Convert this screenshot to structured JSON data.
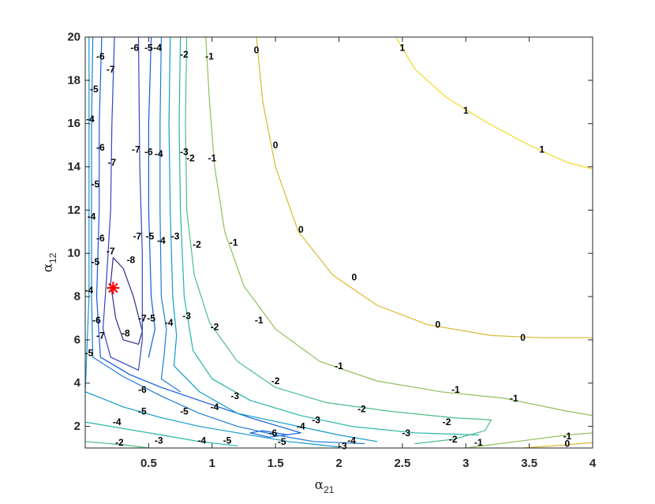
{
  "chart_data": {
    "type": "contour",
    "title": "",
    "xlabel": {
      "symbol": "α",
      "subscript": "21"
    },
    "ylabel": {
      "symbol": "α",
      "subscript": "12"
    },
    "xlim": [
      0.0,
      4.0
    ],
    "ylim": [
      1,
      20
    ],
    "x_ticks": [
      0.5,
      1,
      1.5,
      2,
      2.5,
      3,
      3.5,
      4
    ],
    "y_ticks": [
      2,
      4,
      6,
      8,
      10,
      12,
      14,
      16,
      18,
      20
    ],
    "x_tick_labels": [
      "0.5",
      "1",
      "1.5",
      "2",
      "2.5",
      "3",
      "3.5",
      "4"
    ],
    "y_tick_labels": [
      "2",
      "4",
      "6",
      "8",
      "10",
      "12",
      "14",
      "16",
      "18",
      "20"
    ],
    "grid": false,
    "colormap": "parula",
    "marker": {
      "symbol": "*",
      "color": "#ff0000",
      "x": 0.22,
      "y": 8.4
    },
    "levels": [
      {
        "value": -8,
        "color": "#352a87",
        "points": [
          [
            0.22,
            9.8
          ],
          [
            0.3,
            9.3
          ],
          [
            0.38,
            8.0
          ],
          [
            0.45,
            6.4
          ],
          [
            0.42,
            5.8
          ],
          [
            0.3,
            6.0
          ],
          [
            0.24,
            7.0
          ],
          [
            0.2,
            8.6
          ],
          [
            0.22,
            9.8
          ]
        ]
      },
      {
        "value": -7,
        "color": "#3344c4",
        "points": [
          [
            0.23,
            20
          ],
          [
            0.21,
            16
          ],
          [
            0.2,
            12
          ],
          [
            0.17,
            9
          ],
          [
            0.14,
            6.5
          ],
          [
            0.2,
            5.2
          ],
          [
            0.42,
            4.6
          ],
          [
            0.45,
            6
          ],
          [
            0.45,
            10
          ],
          [
            0.43,
            14
          ],
          [
            0.42,
            20
          ]
        ]
      },
      {
        "value": -6,
        "color": "#0f5cdd",
        "points": [
          [
            0.13,
            20
          ],
          [
            0.11,
            16
          ],
          [
            0.11,
            12
          ],
          [
            0.09,
            8
          ],
          [
            0.12,
            5.2
          ],
          [
            0.35,
            4.4
          ],
          [
            0.6,
            3.8
          ],
          [
            0.9,
            3.2
          ],
          [
            1.3,
            2.4
          ],
          [
            1.7,
            1.7
          ],
          [
            1.45,
            1.5
          ],
          [
            1.3,
            1.7
          ],
          [
            1.4,
            1.8
          ],
          [
            1.6,
            1.6
          ]
        ]
      },
      {
        "value": -6,
        "color": "#0f5cdd",
        "points": [
          [
            0.52,
            20
          ],
          [
            0.5,
            16
          ],
          [
            0.5,
            12
          ],
          [
            0.52,
            8
          ],
          [
            0.55,
            6.5
          ],
          [
            0.5,
            5.2
          ]
        ]
      },
      {
        "value": -5,
        "color": "#1e7ad6",
        "points": [
          [
            0.06,
            20
          ],
          [
            0.05,
            16
          ],
          [
            0.05,
            12
          ],
          [
            0.05,
            8
          ],
          [
            0.06,
            5.2
          ],
          [
            0.3,
            4.3
          ],
          [
            0.6,
            3.4
          ],
          [
            0.9,
            2.6
          ],
          [
            1.2,
            2.0
          ],
          [
            1.5,
            1.6
          ],
          [
            1.8,
            1.3
          ],
          [
            2.2,
            1.2
          ]
        ]
      },
      {
        "value": -5,
        "color": "#1e7ad6",
        "points": [
          [
            0.6,
            20
          ],
          [
            0.59,
            16
          ],
          [
            0.59,
            12
          ],
          [
            0.6,
            8
          ],
          [
            0.64,
            6.5
          ],
          [
            0.62,
            5.2
          ],
          [
            0.6,
            4.2
          ],
          [
            0.75,
            3.6
          ]
        ]
      },
      {
        "value": -4,
        "color": "#109bcb",
        "points": [
          [
            0.03,
            20
          ],
          [
            0.03,
            16
          ],
          [
            0.03,
            12
          ],
          [
            0.03,
            8
          ],
          [
            0.0,
            3.6
          ],
          [
            0.3,
            2.9
          ],
          [
            0.6,
            2.4
          ],
          [
            0.9,
            2.0
          ],
          [
            1.2,
            1.7
          ],
          [
            1.6,
            1.3
          ],
          [
            2.0,
            1.05
          ]
        ]
      },
      {
        "value": -4,
        "color": "#109bcb",
        "points": [
          [
            0.67,
            20
          ],
          [
            0.66,
            16
          ],
          [
            0.67,
            12
          ],
          [
            0.69,
            8
          ],
          [
            0.72,
            6.2
          ],
          [
            0.7,
            4.8
          ],
          [
            0.9,
            3.6
          ],
          [
            1.2,
            2.6
          ],
          [
            1.6,
            2.1
          ],
          [
            2.0,
            1.6
          ],
          [
            2.3,
            1.3
          ]
        ]
      },
      {
        "value": -3,
        "color": "#22b4aa",
        "points": [
          [
            0.0,
            2.2
          ],
          [
            0.3,
            1.9
          ],
          [
            0.6,
            1.6
          ],
          [
            0.9,
            1.3
          ],
          [
            1.2,
            1.1
          ]
        ]
      },
      {
        "value": -3,
        "color": "#22b4aa",
        "points": [
          [
            0.75,
            20
          ],
          [
            0.74,
            16
          ],
          [
            0.75,
            12
          ],
          [
            0.78,
            8
          ],
          [
            0.85,
            5.5
          ],
          [
            1.0,
            4.2
          ],
          [
            1.3,
            3.2
          ],
          [
            1.7,
            2.5
          ],
          [
            2.1,
            2.0
          ],
          [
            2.6,
            1.7
          ],
          [
            3.1,
            1.6
          ]
        ]
      },
      {
        "value": -2,
        "color": "#4bbd89",
        "points": [
          [
            0.0,
            1.3
          ],
          [
            0.3,
            1.15
          ],
          [
            0.5,
            1.0
          ]
        ]
      },
      {
        "value": -2,
        "color": "#4bbd89",
        "points": [
          [
            0.8,
            20
          ],
          [
            0.79,
            16
          ],
          [
            0.8,
            12
          ],
          [
            0.86,
            9
          ],
          [
            0.98,
            6.8
          ],
          [
            1.2,
            5.0
          ],
          [
            1.5,
            3.8
          ],
          [
            1.9,
            3.1
          ],
          [
            2.4,
            2.7
          ],
          [
            2.9,
            2.4
          ],
          [
            3.2,
            2.3
          ],
          [
            3.15,
            1.8
          ],
          [
            2.9,
            1.4
          ],
          [
            2.6,
            1.2
          ]
        ]
      },
      {
        "value": -1,
        "color": "#8fbf5a",
        "points": [
          [
            0.95,
            20
          ],
          [
            0.98,
            17
          ],
          [
            1.02,
            14
          ],
          [
            1.1,
            11
          ],
          [
            1.25,
            8.5
          ],
          [
            1.5,
            6.5
          ],
          [
            1.85,
            5.0
          ],
          [
            2.3,
            4.1
          ],
          [
            2.8,
            3.6
          ],
          [
            3.3,
            3.3
          ],
          [
            3.8,
            2.7
          ],
          [
            4.0,
            2.5
          ]
        ]
      },
      {
        "value": -1,
        "color": "#8fbf5a",
        "points": [
          [
            3.0,
            1.0
          ],
          [
            3.4,
            1.3
          ],
          [
            3.8,
            1.6
          ],
          [
            4.0,
            1.7
          ]
        ]
      },
      {
        "value": 0,
        "color": "#d9b92f",
        "points": [
          [
            1.35,
            20
          ],
          [
            1.4,
            17
          ],
          [
            1.5,
            14
          ],
          [
            1.68,
            11
          ],
          [
            1.95,
            9.0
          ],
          [
            2.3,
            7.6
          ],
          [
            2.7,
            6.7
          ],
          [
            3.2,
            6.2
          ],
          [
            3.6,
            6.1
          ],
          [
            4.0,
            6.1
          ]
        ]
      },
      {
        "value": 0,
        "color": "#d9b92f",
        "points": [
          [
            3.45,
            1.0
          ],
          [
            3.8,
            1.15
          ],
          [
            4.0,
            1.25
          ]
        ]
      },
      {
        "value": 1,
        "color": "#f1d923",
        "points": [
          [
            2.45,
            20
          ],
          [
            2.6,
            18.5
          ],
          [
            2.85,
            17.2
          ],
          [
            3.15,
            16.1
          ],
          [
            3.5,
            15.0
          ],
          [
            3.8,
            14.2
          ],
          [
            4.0,
            13.9
          ]
        ]
      }
    ],
    "labels": [
      {
        "text": "-6",
        "x": 0.12,
        "y": 19.1
      },
      {
        "text": "-7",
        "x": 0.2,
        "y": 18.5
      },
      {
        "text": "-5",
        "x": 0.07,
        "y": 17.6
      },
      {
        "text": "-4",
        "x": 0.04,
        "y": 16.2
      },
      {
        "text": "-6",
        "x": 0.39,
        "y": 19.5
      },
      {
        "text": "-5",
        "x": 0.5,
        "y": 19.5
      },
      {
        "text": "-4",
        "x": 0.57,
        "y": 19.5
      },
      {
        "text": "-2",
        "x": 0.78,
        "y": 19.2
      },
      {
        "text": "-1",
        "x": 0.98,
        "y": 19.1
      },
      {
        "text": "0",
        "x": 1.35,
        "y": 19.4
      },
      {
        "text": "1",
        "x": 2.5,
        "y": 19.5
      },
      {
        "text": "1",
        "x": 3.0,
        "y": 16.6
      },
      {
        "text": "1",
        "x": 3.6,
        "y": 14.8
      },
      {
        "text": "-6",
        "x": 0.12,
        "y": 14.9
      },
      {
        "text": "-7",
        "x": 0.21,
        "y": 14.2
      },
      {
        "text": "-5",
        "x": 0.08,
        "y": 13.2
      },
      {
        "text": "-4",
        "x": 0.05,
        "y": 11.7
      },
      {
        "text": "-7",
        "x": 0.4,
        "y": 14.8
      },
      {
        "text": "-6",
        "x": 0.5,
        "y": 14.7
      },
      {
        "text": "-4",
        "x": 0.58,
        "y": 14.6
      },
      {
        "text": "-3",
        "x": 0.78,
        "y": 14.7
      },
      {
        "text": "-2",
        "x": 0.83,
        "y": 14.4
      },
      {
        "text": "-1",
        "x": 1.0,
        "y": 14.4
      },
      {
        "text": "0",
        "x": 1.5,
        "y": 15.0
      },
      {
        "text": "0",
        "x": 1.7,
        "y": 11.1
      },
      {
        "text": "0",
        "x": 2.12,
        "y": 8.9
      },
      {
        "text": "0",
        "x": 2.78,
        "y": 6.7
      },
      {
        "text": "0",
        "x": 3.45,
        "y": 6.1
      },
      {
        "text": "-6",
        "x": 0.12,
        "y": 10.7
      },
      {
        "text": "-7",
        "x": 0.2,
        "y": 10.1
      },
      {
        "text": "-5",
        "x": 0.08,
        "y": 9.6
      },
      {
        "text": "-4",
        "x": 0.03,
        "y": 8.3
      },
      {
        "text": "-7",
        "x": 0.41,
        "y": 10.8
      },
      {
        "text": "-5",
        "x": 0.51,
        "y": 10.8
      },
      {
        "text": "-4",
        "x": 0.6,
        "y": 10.6
      },
      {
        "text": "-3",
        "x": 0.71,
        "y": 10.8
      },
      {
        "text": "-2",
        "x": 0.88,
        "y": 10.4
      },
      {
        "text": "-1",
        "x": 1.17,
        "y": 10.5
      },
      {
        "text": "-8",
        "x": 0.36,
        "y": 9.7
      },
      {
        "text": "-6",
        "x": 0.09,
        "y": 6.9
      },
      {
        "text": "-7",
        "x": 0.12,
        "y": 6.2
      },
      {
        "text": "-5",
        "x": 0.03,
        "y": 5.4
      },
      {
        "text": "-7",
        "x": 0.45,
        "y": 7.0
      },
      {
        "text": "-5",
        "x": 0.52,
        "y": 7.0
      },
      {
        "text": "-4",
        "x": 0.66,
        "y": 6.8
      },
      {
        "text": "-3",
        "x": 0.8,
        "y": 7.1
      },
      {
        "text": "-8",
        "x": 0.32,
        "y": 6.3
      },
      {
        "text": "-2",
        "x": 1.02,
        "y": 6.6
      },
      {
        "text": "-1",
        "x": 1.37,
        "y": 6.9
      },
      {
        "text": "-1",
        "x": 2.0,
        "y": 4.8
      },
      {
        "text": "-1",
        "x": 2.92,
        "y": 3.7
      },
      {
        "text": "-1",
        "x": 3.38,
        "y": 3.3
      },
      {
        "text": "-6",
        "x": 0.45,
        "y": 3.7
      },
      {
        "text": "-5",
        "x": 0.45,
        "y": 2.7
      },
      {
        "text": "-5",
        "x": 0.78,
        "y": 2.7
      },
      {
        "text": "-4",
        "x": 0.25,
        "y": 2.2
      },
      {
        "text": "-4",
        "x": 1.02,
        "y": 2.9
      },
      {
        "text": "-3",
        "x": 1.18,
        "y": 3.4
      },
      {
        "text": "-2",
        "x": 1.5,
        "y": 4.1
      },
      {
        "text": "-2",
        "x": 2.18,
        "y": 2.8
      },
      {
        "text": "-2",
        "x": 2.85,
        "y": 2.2
      },
      {
        "text": "-4",
        "x": 1.7,
        "y": 2.0
      },
      {
        "text": "-3",
        "x": 1.82,
        "y": 2.3
      },
      {
        "text": "-3",
        "x": 2.53,
        "y": 1.7
      },
      {
        "text": "-6",
        "x": 1.48,
        "y": 1.7
      },
      {
        "text": "-5",
        "x": 1.55,
        "y": 1.3
      },
      {
        "text": "-4",
        "x": 2.1,
        "y": 1.35
      },
      {
        "text": "-3",
        "x": 2.03,
        "y": 1.1
      },
      {
        "text": "-2",
        "x": 0.27,
        "y": 1.25
      },
      {
        "text": "-3",
        "x": 0.58,
        "y": 1.35
      },
      {
        "text": "-4",
        "x": 0.92,
        "y": 1.35
      },
      {
        "text": "-5",
        "x": 1.12,
        "y": 1.35
      },
      {
        "text": "-2",
        "x": 2.9,
        "y": 1.4
      },
      {
        "text": "-1",
        "x": 3.1,
        "y": 1.25
      },
      {
        "text": "-1",
        "x": 3.8,
        "y": 1.55
      },
      {
        "text": "0",
        "x": 3.8,
        "y": 1.2
      }
    ]
  }
}
